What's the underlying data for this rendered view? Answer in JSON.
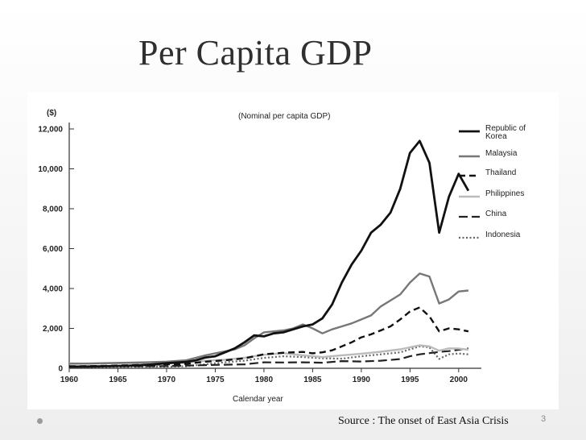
{
  "slide": {
    "title": "Per Capita GDP",
    "source": "Source : The onset of East Asia Crisis",
    "slide_number": "3"
  },
  "chart_data": {
    "type": "line",
    "title": "(Nominal per capita GDP)",
    "ylabel": "($)",
    "xlabel": "Calendar year",
    "xlim": [
      1960,
      2002
    ],
    "ylim": [
      0,
      12000
    ],
    "x_ticks": [
      1960,
      1965,
      1970,
      1975,
      1980,
      1985,
      1990,
      1995,
      2000
    ],
    "y_ticks": [
      0,
      2000,
      4000,
      6000,
      8000,
      10000,
      12000
    ],
    "y_tick_labels": [
      "0",
      "2,000",
      "4,000",
      "6,000",
      "8,000",
      "10,000",
      "12,000"
    ],
    "legend_position": "top-right",
    "series": [
      {
        "name": "Republic of Korea",
        "legend_lines": [
          "Republic of",
          "Korea"
        ],
        "style": "solid-thick",
        "color": "#111111",
        "points": [
          [
            1960,
            80
          ],
          [
            1962,
            90
          ],
          [
            1964,
            105
          ],
          [
            1966,
            125
          ],
          [
            1968,
            170
          ],
          [
            1970,
            255
          ],
          [
            1972,
            320
          ],
          [
            1973,
            400
          ],
          [
            1974,
            540
          ],
          [
            1975,
            600
          ],
          [
            1976,
            800
          ],
          [
            1977,
            1000
          ],
          [
            1978,
            1300
          ],
          [
            1979,
            1650
          ],
          [
            1980,
            1600
          ],
          [
            1981,
            1750
          ],
          [
            1982,
            1800
          ],
          [
            1983,
            1950
          ],
          [
            1984,
            2100
          ],
          [
            1985,
            2200
          ],
          [
            1986,
            2500
          ],
          [
            1987,
            3200
          ],
          [
            1988,
            4300
          ],
          [
            1989,
            5200
          ],
          [
            1990,
            5900
          ],
          [
            1991,
            6800
          ],
          [
            1992,
            7200
          ],
          [
            1993,
            7800
          ],
          [
            1994,
            9000
          ],
          [
            1995,
            10800
          ],
          [
            1996,
            11400
          ],
          [
            1997,
            10300
          ],
          [
            1998,
            6800
          ],
          [
            1999,
            8600
          ],
          [
            2000,
            9750
          ],
          [
            2001,
            8900
          ]
        ]
      },
      {
        "name": "Malaysia",
        "legend_lines": [
          "Malaysia"
        ],
        "style": "solid",
        "color": "#777777",
        "points": [
          [
            1960,
            230
          ],
          [
            1962,
            240
          ],
          [
            1964,
            260
          ],
          [
            1966,
            280
          ],
          [
            1968,
            300
          ],
          [
            1970,
            330
          ],
          [
            1972,
            400
          ],
          [
            1974,
            650
          ],
          [
            1975,
            750
          ],
          [
            1976,
            850
          ],
          [
            1977,
            950
          ],
          [
            1978,
            1150
          ],
          [
            1979,
            1500
          ],
          [
            1980,
            1800
          ],
          [
            1981,
            1850
          ],
          [
            1982,
            1900
          ],
          [
            1983,
            2000
          ],
          [
            1984,
            2200
          ],
          [
            1985,
            2000
          ],
          [
            1986,
            1750
          ],
          [
            1987,
            1950
          ],
          [
            1988,
            2100
          ],
          [
            1989,
            2250
          ],
          [
            1990,
            2450
          ],
          [
            1991,
            2650
          ],
          [
            1992,
            3100
          ],
          [
            1993,
            3400
          ],
          [
            1994,
            3700
          ],
          [
            1995,
            4300
          ],
          [
            1996,
            4750
          ],
          [
            1997,
            4600
          ],
          [
            1998,
            3250
          ],
          [
            1999,
            3450
          ],
          [
            2000,
            3850
          ],
          [
            2001,
            3900
          ]
        ]
      },
      {
        "name": "Thailand",
        "legend_lines": [
          "Thailand"
        ],
        "style": "dashed",
        "color": "#111111",
        "points": [
          [
            1960,
            100
          ],
          [
            1962,
            110
          ],
          [
            1964,
            125
          ],
          [
            1966,
            150
          ],
          [
            1968,
            180
          ],
          [
            1970,
            200
          ],
          [
            1972,
            220
          ],
          [
            1974,
            330
          ],
          [
            1976,
            400
          ],
          [
            1978,
            500
          ],
          [
            1980,
            700
          ],
          [
            1982,
            780
          ],
          [
            1984,
            820
          ],
          [
            1985,
            750
          ],
          [
            1986,
            800
          ],
          [
            1987,
            900
          ],
          [
            1988,
            1100
          ],
          [
            1989,
            1300
          ],
          [
            1990,
            1550
          ],
          [
            1991,
            1700
          ],
          [
            1992,
            1900
          ],
          [
            1993,
            2100
          ],
          [
            1994,
            2450
          ],
          [
            1995,
            2850
          ],
          [
            1996,
            3050
          ],
          [
            1997,
            2600
          ],
          [
            1998,
            1850
          ],
          [
            1999,
            2000
          ],
          [
            2000,
            1950
          ],
          [
            2001,
            1850
          ]
        ]
      },
      {
        "name": "Philippines",
        "legend_lines": [
          "Philippines"
        ],
        "style": "solid-light",
        "color": "#bbbbbb",
        "points": [
          [
            1960,
            250
          ],
          [
            1962,
            230
          ],
          [
            1964,
            250
          ],
          [
            1966,
            260
          ],
          [
            1968,
            280
          ],
          [
            1970,
            250
          ],
          [
            1972,
            270
          ],
          [
            1974,
            380
          ],
          [
            1976,
            430
          ],
          [
            1978,
            530
          ],
          [
            1980,
            680
          ],
          [
            1982,
            760
          ],
          [
            1984,
            650
          ],
          [
            1986,
            560
          ],
          [
            1988,
            650
          ],
          [
            1990,
            730
          ],
          [
            1992,
            830
          ],
          [
            1994,
            950
          ],
          [
            1996,
            1150
          ],
          [
            1997,
            1100
          ],
          [
            1998,
            880
          ],
          [
            1999,
            1000
          ],
          [
            2000,
            990
          ],
          [
            2001,
            930
          ]
        ]
      },
      {
        "name": "China",
        "legend_lines": [
          "China"
        ],
        "style": "long-dash",
        "color": "#222222",
        "points": [
          [
            1960,
            90
          ],
          [
            1965,
            100
          ],
          [
            1970,
            110
          ],
          [
            1975,
            170
          ],
          [
            1978,
            200
          ],
          [
            1980,
            300
          ],
          [
            1982,
            290
          ],
          [
            1984,
            300
          ],
          [
            1986,
            280
          ],
          [
            1988,
            360
          ],
          [
            1990,
            340
          ],
          [
            1992,
            380
          ],
          [
            1994,
            460
          ],
          [
            1995,
            600
          ],
          [
            1996,
            700
          ],
          [
            1997,
            760
          ],
          [
            1998,
            820
          ],
          [
            1999,
            860
          ],
          [
            2000,
            930
          ],
          [
            2001,
            1000
          ]
        ]
      },
      {
        "name": "Indonesia",
        "legend_lines": [
          "Indonesia"
        ],
        "style": "dotted",
        "color": "#666666",
        "points": [
          [
            1960,
            60
          ],
          [
            1965,
            70
          ],
          [
            1970,
            80
          ],
          [
            1972,
            100
          ],
          [
            1974,
            200
          ],
          [
            1976,
            300
          ],
          [
            1978,
            380
          ],
          [
            1980,
            520
          ],
          [
            1982,
            600
          ],
          [
            1984,
            560
          ],
          [
            1986,
            500
          ],
          [
            1988,
            480
          ],
          [
            1990,
            600
          ],
          [
            1992,
            700
          ],
          [
            1994,
            800
          ],
          [
            1996,
            1100
          ],
          [
            1997,
            1050
          ],
          [
            1998,
            470
          ],
          [
            1999,
            700
          ],
          [
            2000,
            740
          ],
          [
            2001,
            700
          ]
        ]
      }
    ]
  }
}
